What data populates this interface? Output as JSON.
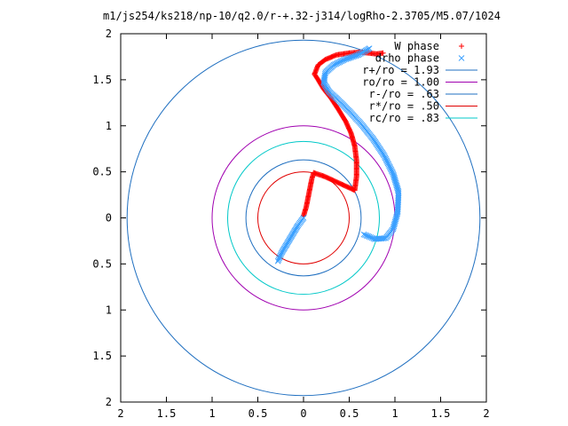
{
  "chart_data": {
    "type": "scatter",
    "title": "m1/js254/ks218/np-10/q2.0/r-+.32-j314/logRho-2.3705/M5.07/1024",
    "xlim": [
      -2,
      2
    ],
    "ylim": [
      -2,
      2
    ],
    "x_ticks": [
      -2,
      -1.5,
      -1,
      -0.5,
      0,
      0.5,
      1,
      1.5,
      2
    ],
    "y_ticks": [
      -2,
      -1.5,
      -1,
      -0.5,
      0,
      0.5,
      1,
      1.5,
      2
    ],
    "x_tick_labels": [
      "2",
      "1.5",
      "1",
      "0.5",
      "0",
      "0.5",
      "1",
      "1.5",
      "2"
    ],
    "y_tick_labels": [
      "2",
      "1.5",
      "1",
      "0.5",
      "0",
      "0.5",
      "1",
      "1.5",
      "2"
    ],
    "legend_position": "top-right",
    "circles": [
      {
        "label": "r+/ro = 1.93",
        "radius": 1.93,
        "color": "#1f6fc0"
      },
      {
        "label": "ro/ro = 1.00",
        "radius": 1.0,
        "color": "#a000b0"
      },
      {
        "label": "r-/ro = .63",
        "radius": 0.63,
        "color": "#1f6fc0"
      },
      {
        "label": "r*/ro = .50",
        "radius": 0.5,
        "color": "#e00000"
      },
      {
        "label": "rc/ro = .83",
        "radius": 0.83,
        "color": "#00c8c8"
      }
    ],
    "series": [
      {
        "name": "W phase",
        "marker": "+",
        "color": "#ff0000",
        "points": [
          [
            0.0,
            0.02
          ],
          [
            0.03,
            0.12
          ],
          [
            0.05,
            0.22
          ],
          [
            0.07,
            0.32
          ],
          [
            0.09,
            0.42
          ],
          [
            0.11,
            0.49
          ],
          [
            0.23,
            0.45
          ],
          [
            0.56,
            0.3
          ],
          [
            0.58,
            0.45
          ],
          [
            0.58,
            0.62
          ],
          [
            0.56,
            0.78
          ],
          [
            0.52,
            0.92
          ],
          [
            0.46,
            1.05
          ],
          [
            0.38,
            1.18
          ],
          [
            0.3,
            1.3
          ],
          [
            0.22,
            1.4
          ],
          [
            0.16,
            1.5
          ],
          [
            0.12,
            1.56
          ],
          [
            0.16,
            1.66
          ],
          [
            0.24,
            1.72
          ],
          [
            0.36,
            1.77
          ],
          [
            0.5,
            1.79
          ],
          [
            0.63,
            1.8
          ],
          [
            0.72,
            1.79
          ],
          [
            0.8,
            1.78
          ],
          [
            0.87,
            1.79
          ]
        ]
      },
      {
        "name": "drho phase",
        "marker": "x",
        "color": "#3ba0ff",
        "points": [
          [
            -0.28,
            -0.47
          ],
          [
            -0.24,
            -0.38
          ],
          [
            -0.18,
            -0.28
          ],
          [
            -0.12,
            -0.18
          ],
          [
            -0.06,
            -0.08
          ],
          [
            0.0,
            0.0
          ],
          [
            0.72,
            1.84
          ],
          [
            0.6,
            1.77
          ],
          [
            0.45,
            1.72
          ],
          [
            0.33,
            1.66
          ],
          [
            0.24,
            1.58
          ],
          [
            0.22,
            1.47
          ],
          [
            0.28,
            1.37
          ],
          [
            0.38,
            1.28
          ],
          [
            0.5,
            1.16
          ],
          [
            0.63,
            1.02
          ],
          [
            0.76,
            0.86
          ],
          [
            0.88,
            0.68
          ],
          [
            0.98,
            0.48
          ],
          [
            1.04,
            0.28
          ],
          [
            1.03,
            0.06
          ],
          [
            0.98,
            -0.12
          ],
          [
            0.9,
            -0.22
          ],
          [
            0.78,
            -0.23
          ],
          [
            0.66,
            -0.18
          ]
        ]
      }
    ]
  }
}
